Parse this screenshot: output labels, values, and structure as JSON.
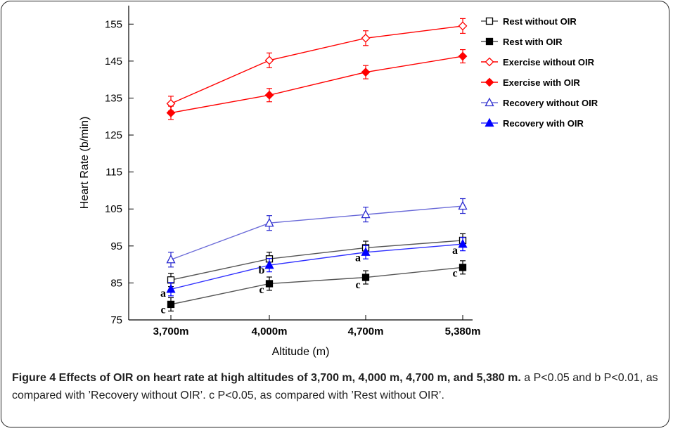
{
  "chart_data": {
    "type": "line",
    "categories": [
      "3,700m",
      "4,000m",
      "4,700m",
      "5,380m"
    ],
    "xlabel": "Altitude (m)",
    "ylabel": "Heart Rate  (b/min)",
    "ylim": [
      75,
      160
    ],
    "yticks": [
      75,
      85,
      95,
      105,
      115,
      125,
      135,
      145,
      155
    ],
    "legend_position": "top-right",
    "series": [
      {
        "name": "Rest without OIR",
        "color": "#000000",
        "marker": "square-open",
        "line_color": "#555555",
        "values": [
          85.8,
          91.5,
          94.5,
          96.5
        ],
        "errors": [
          1.8,
          1.8,
          1.8,
          1.8
        ]
      },
      {
        "name": "Rest with OIR",
        "color": "#000000",
        "marker": "square-filled",
        "line_color": "#555555",
        "values": [
          79.2,
          84.8,
          86.5,
          89.2
        ],
        "errors": [
          1.8,
          1.8,
          1.8,
          1.8
        ]
      },
      {
        "name": "Exercise without OIR",
        "color": "#ff0000",
        "marker": "diamond-open",
        "line_color": "#ff0000",
        "values": [
          133.5,
          145.2,
          151.2,
          154.5
        ],
        "errors": [
          2.0,
          2.0,
          2.0,
          2.0
        ]
      },
      {
        "name": "Exercise with OIR",
        "color": "#ff0000",
        "marker": "diamond-filled",
        "line_color": "#ff0000",
        "values": [
          131.0,
          135.8,
          142.0,
          146.3
        ],
        "errors": [
          1.8,
          1.8,
          1.8,
          1.8
        ]
      },
      {
        "name": "Recovery without OIR",
        "color": "#2a2ad0",
        "marker": "triangle-open",
        "line_color": "#6a6ad8",
        "values": [
          91.3,
          101.2,
          103.5,
          105.8
        ],
        "errors": [
          2.0,
          2.0,
          2.0,
          2.0
        ]
      },
      {
        "name": "Recovery with OIR",
        "color": "#0000ff",
        "marker": "triangle-filled",
        "line_color": "#3030ff",
        "values": [
          83.3,
          89.8,
          93.3,
          95.5
        ],
        "errors": [
          1.8,
          1.8,
          1.8,
          1.8
        ]
      }
    ],
    "annotations": [
      {
        "text": "a",
        "category": 0,
        "y": 82.2
      },
      {
        "text": "c",
        "category": 0,
        "y": 77.8
      },
      {
        "text": "b",
        "category": 1,
        "y": 88.5
      },
      {
        "text": "c",
        "category": 1,
        "y": 83.2
      },
      {
        "text": "a",
        "category": 2,
        "y": 91.8
      },
      {
        "text": "c",
        "category": 2,
        "y": 84.5
      },
      {
        "text": "a",
        "category": 3,
        "y": 93.8
      },
      {
        "text": "c",
        "category": 3,
        "y": 87.6
      }
    ]
  },
  "caption": {
    "bold": "Figure 4 Effects of OIR on heart rate at high altitudes of 3,700 m, 4,000 m, 4,700 m, and 5,380 m.",
    "text": " a P<0.05 and b P<0.01, as compared with ’Recovery without OIR’. c P<0.05, as compared with ’Rest without OIR’."
  }
}
